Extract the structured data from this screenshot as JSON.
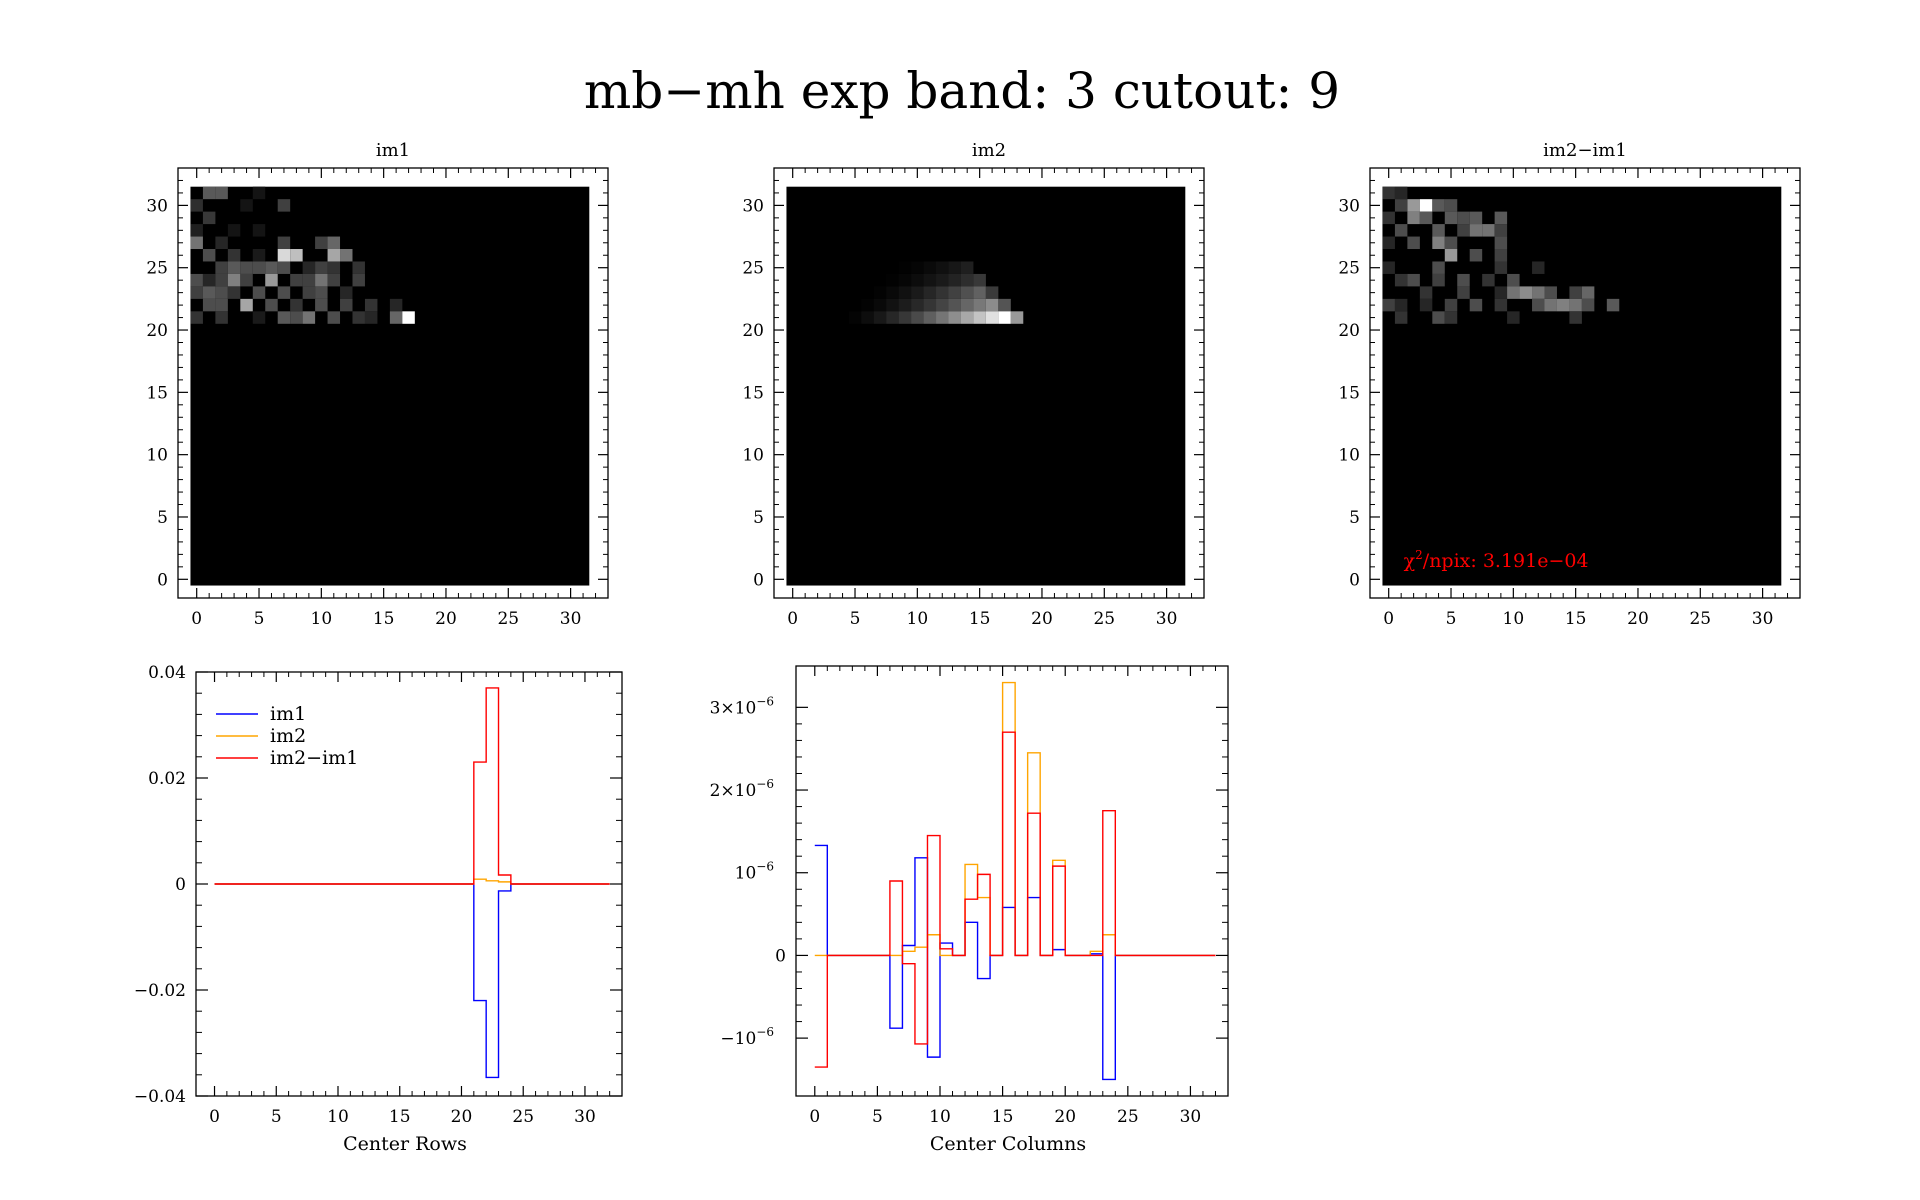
{
  "title": "mb−mh exp band: 3 cutout: 9",
  "colors": {
    "im1": "#0000ff",
    "im2": "#ffa500",
    "diff": "#ff0000",
    "annotation": "#ff0000"
  },
  "chart_data": [
    {
      "type": "heatmap",
      "title": "im1",
      "xlim": [
        -1.5,
        33
      ],
      "ylim": [
        -1.5,
        33
      ],
      "xticks": [
        "0",
        "5",
        "10",
        "15",
        "20",
        "25",
        "30"
      ],
      "yticks": [
        "0",
        "5",
        "10",
        "15",
        "20",
        "25",
        "30"
      ],
      "pixels": [
        [
          1,
          31,
          0.35
        ],
        [
          2,
          31,
          0.35
        ],
        [
          0,
          30,
          0.18
        ],
        [
          4,
          30,
          0.08
        ],
        [
          5,
          31,
          0.08
        ],
        [
          7,
          30,
          0.25
        ],
        [
          1,
          29,
          0.22
        ],
        [
          0,
          28,
          0.12
        ],
        [
          3,
          28,
          0.08
        ],
        [
          5,
          28,
          0.08
        ],
        [
          0,
          27,
          0.45
        ],
        [
          2,
          27,
          0.15
        ],
        [
          7,
          27,
          0.25
        ],
        [
          10,
          27,
          0.25
        ],
        [
          11,
          27,
          0.4
        ],
        [
          1,
          26,
          0.3
        ],
        [
          3,
          26,
          0.2
        ],
        [
          5,
          26,
          0.1
        ],
        [
          7,
          26,
          0.85
        ],
        [
          8,
          26,
          0.75
        ],
        [
          11,
          26,
          0.65
        ],
        [
          12,
          26,
          0.45
        ],
        [
          2,
          25,
          0.25
        ],
        [
          3,
          25,
          0.35
        ],
        [
          4,
          25,
          0.3
        ],
        [
          5,
          25,
          0.3
        ],
        [
          6,
          25,
          0.35
        ],
        [
          7,
          25,
          0.3
        ],
        [
          9,
          25,
          0.15
        ],
        [
          10,
          25,
          0.25
        ],
        [
          11,
          25,
          0.2
        ],
        [
          13,
          25,
          0.2
        ],
        [
          0,
          24,
          0.3
        ],
        [
          1,
          24,
          0.15
        ],
        [
          2,
          24,
          0.25
        ],
        [
          3,
          24,
          0.5
        ],
        [
          4,
          24,
          0.25
        ],
        [
          6,
          24,
          0.6
        ],
        [
          8,
          24,
          0.25
        ],
        [
          9,
          24,
          0.25
        ],
        [
          10,
          24,
          0.45
        ],
        [
          11,
          24,
          0.25
        ],
        [
          13,
          24,
          0.25
        ],
        [
          0,
          23,
          0.25
        ],
        [
          1,
          23,
          0.35
        ],
        [
          2,
          23,
          0.3
        ],
        [
          3,
          23,
          0.2
        ],
        [
          5,
          23,
          0.3
        ],
        [
          7,
          23,
          0.3
        ],
        [
          9,
          23,
          0.25
        ],
        [
          10,
          23,
          0.3
        ],
        [
          12,
          23,
          0.15
        ],
        [
          1,
          22,
          0.3
        ],
        [
          2,
          22,
          0.3
        ],
        [
          4,
          22,
          0.65
        ],
        [
          6,
          22,
          0.3
        ],
        [
          8,
          22,
          0.2
        ],
        [
          10,
          22,
          0.3
        ],
        [
          12,
          22,
          0.25
        ],
        [
          14,
          22,
          0.2
        ],
        [
          16,
          22,
          0.15
        ],
        [
          0,
          21,
          0.2
        ],
        [
          2,
          21,
          0.2
        ],
        [
          5,
          21,
          0.1
        ],
        [
          7,
          21,
          0.35
        ],
        [
          8,
          21,
          0.3
        ],
        [
          9,
          21,
          0.45
        ],
        [
          11,
          21,
          0.3
        ],
        [
          13,
          21,
          0.2
        ],
        [
          14,
          21,
          0.15
        ],
        [
          16,
          21,
          0.4
        ],
        [
          17,
          21,
          1.0
        ]
      ]
    },
    {
      "type": "heatmap",
      "title": "im2",
      "xlim": [
        -1.5,
        33
      ],
      "ylim": [
        -1.5,
        33
      ],
      "xticks": [
        "0",
        "5",
        "10",
        "15",
        "20",
        "25",
        "30"
      ],
      "yticks": [
        "0",
        "5",
        "10",
        "15",
        "20",
        "25",
        "30"
      ],
      "rows": [
        {
          "y": 25,
          "x0": 9,
          "x1": 14,
          "peak": 14,
          "max": 0.12
        },
        {
          "y": 24,
          "x0": 8,
          "x1": 15,
          "peak": 15,
          "max": 0.22
        },
        {
          "y": 23,
          "x0": 7,
          "x1": 16,
          "peak": 15,
          "max": 0.38
        },
        {
          "y": 22,
          "x0": 6,
          "x1": 17,
          "peak": 16,
          "max": 0.55
        },
        {
          "y": 21,
          "x0": 5,
          "x1": 18,
          "peak": 17,
          "max": 1.0
        }
      ]
    },
    {
      "type": "heatmap",
      "title": "im2−im1",
      "xlim": [
        -1.5,
        33
      ],
      "ylim": [
        -1.5,
        33
      ],
      "xticks": [
        "0",
        "5",
        "10",
        "15",
        "20",
        "25",
        "30"
      ],
      "yticks": [
        "0",
        "5",
        "10",
        "15",
        "20",
        "25",
        "30"
      ],
      "annotation_prefix": "χ",
      "annotation_sup": "2",
      "annotation": "/npix: 3.191e−04",
      "pixels": [
        [
          0,
          31,
          0.2
        ],
        [
          1,
          31,
          0.15
        ],
        [
          2,
          30,
          0.6
        ],
        [
          3,
          30,
          1.0
        ],
        [
          4,
          30,
          0.35
        ],
        [
          5,
          30,
          0.3
        ],
        [
          1,
          30,
          0.25
        ],
        [
          0,
          29,
          0.2
        ],
        [
          2,
          29,
          0.5
        ],
        [
          3,
          29,
          0.35
        ],
        [
          5,
          29,
          0.35
        ],
        [
          6,
          29,
          0.3
        ],
        [
          7,
          29,
          0.35
        ],
        [
          9,
          29,
          0.35
        ],
        [
          1,
          28,
          0.3
        ],
        [
          4,
          28,
          0.35
        ],
        [
          6,
          28,
          0.25
        ],
        [
          7,
          28,
          0.45
        ],
        [
          8,
          28,
          0.45
        ],
        [
          9,
          28,
          0.25
        ],
        [
          0,
          27,
          0.15
        ],
        [
          2,
          27,
          0.3
        ],
        [
          4,
          27,
          0.5
        ],
        [
          5,
          27,
          0.3
        ],
        [
          9,
          27,
          0.3
        ],
        [
          5,
          26,
          0.6
        ],
        [
          7,
          26,
          0.3
        ],
        [
          9,
          26,
          0.25
        ],
        [
          0,
          25,
          0.15
        ],
        [
          4,
          25,
          0.3
        ],
        [
          9,
          25,
          0.2
        ],
        [
          12,
          25,
          0.15
        ],
        [
          1,
          24,
          0.2
        ],
        [
          2,
          24,
          0.3
        ],
        [
          4,
          24,
          0.25
        ],
        [
          6,
          24,
          0.3
        ],
        [
          8,
          24,
          0.2
        ],
        [
          10,
          24,
          0.3
        ],
        [
          3,
          23,
          0.2
        ],
        [
          6,
          23,
          0.25
        ],
        [
          9,
          23,
          0.15
        ],
        [
          10,
          23,
          0.45
        ],
        [
          11,
          23,
          0.55
        ],
        [
          12,
          23,
          0.45
        ],
        [
          13,
          23,
          0.3
        ],
        [
          15,
          23,
          0.25
        ],
        [
          16,
          23,
          0.4
        ],
        [
          0,
          22,
          0.25
        ],
        [
          1,
          22,
          0.15
        ],
        [
          3,
          22,
          0.15
        ],
        [
          5,
          22,
          0.25
        ],
        [
          7,
          22,
          0.3
        ],
        [
          9,
          22,
          0.2
        ],
        [
          12,
          22,
          0.3
        ],
        [
          13,
          22,
          0.45
        ],
        [
          14,
          22,
          0.5
        ],
        [
          15,
          22,
          0.45
        ],
        [
          16,
          22,
          0.3
        ],
        [
          18,
          22,
          0.35
        ],
        [
          1,
          21,
          0.2
        ],
        [
          4,
          21,
          0.3
        ],
        [
          5,
          21,
          0.2
        ],
        [
          10,
          21,
          0.15
        ],
        [
          15,
          21,
          0.2
        ]
      ]
    },
    {
      "type": "line",
      "step": true,
      "xlabel": "Center Rows",
      "ylabel": "",
      "xlim": [
        -1.5,
        33
      ],
      "ylim": [
        -0.04,
        0.04
      ],
      "xticks": [
        "0",
        "5",
        "10",
        "15",
        "20",
        "25",
        "30"
      ],
      "yticks": [
        {
          "value": 0.04,
          "label": "0.04"
        },
        {
          "value": 0.02,
          "label": "0.02"
        },
        {
          "value": 0,
          "label": "0"
        },
        {
          "value": -0.02,
          "label": "−0.02"
        },
        {
          "value": -0.04,
          "label": "−0.04"
        }
      ],
      "legend": [
        "im1",
        "im2",
        "im2−im1"
      ],
      "legend_position": "top-left",
      "series": [
        {
          "name": "im1",
          "key": "im1",
          "x0": 0,
          "x1": 32,
          "points": [
            [
              21,
              -0.022
            ],
            [
              22,
              -0.0365
            ],
            [
              23,
              -0.0013
            ]
          ]
        },
        {
          "name": "im2",
          "key": "im2",
          "x0": 0,
          "x1": 32,
          "points": [
            [
              21,
              0.0009
            ],
            [
              22,
              0.0006
            ],
            [
              23,
              0.0004
            ]
          ]
        },
        {
          "name": "im2−im1",
          "key": "diff",
          "x0": 0,
          "x1": 32,
          "points": [
            [
              21,
              0.023
            ],
            [
              22,
              0.037
            ],
            [
              23,
              0.0017
            ]
          ]
        }
      ]
    },
    {
      "type": "line",
      "step": true,
      "xlabel": "Center Columns",
      "ylabel": "",
      "xlim": [
        -1.5,
        33
      ],
      "ylim": [
        -1.7e-06,
        3.5e-06
      ],
      "xticks": [
        "0",
        "5",
        "10",
        "15",
        "20",
        "25",
        "30"
      ],
      "yticks": [
        {
          "value": 3e-06,
          "base": "3×10",
          "exp": "−6"
        },
        {
          "value": 2e-06,
          "base": "2×10",
          "exp": "−6"
        },
        {
          "value": 1e-06,
          "base": "10",
          "exp": "−6"
        },
        {
          "value": 0,
          "base": "0",
          "exp": ""
        },
        {
          "value": -1e-06,
          "base": "−10",
          "exp": "−6"
        }
      ],
      "series": [
        {
          "name": "im1",
          "key": "im1",
          "x0": 0,
          "x1": 32,
          "points": [
            [
              0,
              1.33e-06
            ],
            [
              6,
              -8.8e-07
            ],
            [
              7,
              1.2e-07
            ],
            [
              8,
              1.18e-06
            ],
            [
              9,
              -1.23e-06
            ],
            [
              10,
              1.5e-07
            ],
            [
              12,
              4e-07
            ],
            [
              13,
              -2.8e-07
            ],
            [
              15,
              5.8e-07
            ],
            [
              17,
              7e-07
            ],
            [
              18,
              0
            ],
            [
              19,
              7e-08
            ],
            [
              20,
              0
            ],
            [
              22,
              2e-08
            ],
            [
              23,
              -1.5e-06
            ]
          ]
        },
        {
          "name": "im2",
          "key": "im2",
          "x0": 0,
          "x1": 32,
          "points": [
            [
              7,
              5e-08
            ],
            [
              8,
              1e-07
            ],
            [
              9,
              2.5e-07
            ],
            [
              12,
              1.1e-06
            ],
            [
              13,
              7e-07
            ],
            [
              15,
              3.3e-06
            ],
            [
              17,
              2.45e-06
            ],
            [
              19,
              1.15e-06
            ],
            [
              22,
              5e-08
            ],
            [
              23,
              2.5e-07
            ]
          ]
        },
        {
          "name": "im2−im1",
          "key": "diff",
          "x0": 0,
          "x1": 32,
          "points": [
            [
              0,
              -1.35e-06
            ],
            [
              6,
              9e-07
            ],
            [
              7,
              -1e-07
            ],
            [
              8,
              -1.07e-06
            ],
            [
              9,
              1.45e-06
            ],
            [
              10,
              8e-08
            ],
            [
              12,
              6.8e-07
            ],
            [
              13,
              9.8e-07
            ],
            [
              15,
              2.7e-06
            ],
            [
              17,
              1.72e-06
            ],
            [
              18,
              0
            ],
            [
              19,
              1.08e-06
            ],
            [
              20,
              0
            ],
            [
              22,
              0
            ],
            [
              23,
              1.75e-06
            ]
          ]
        }
      ]
    }
  ]
}
